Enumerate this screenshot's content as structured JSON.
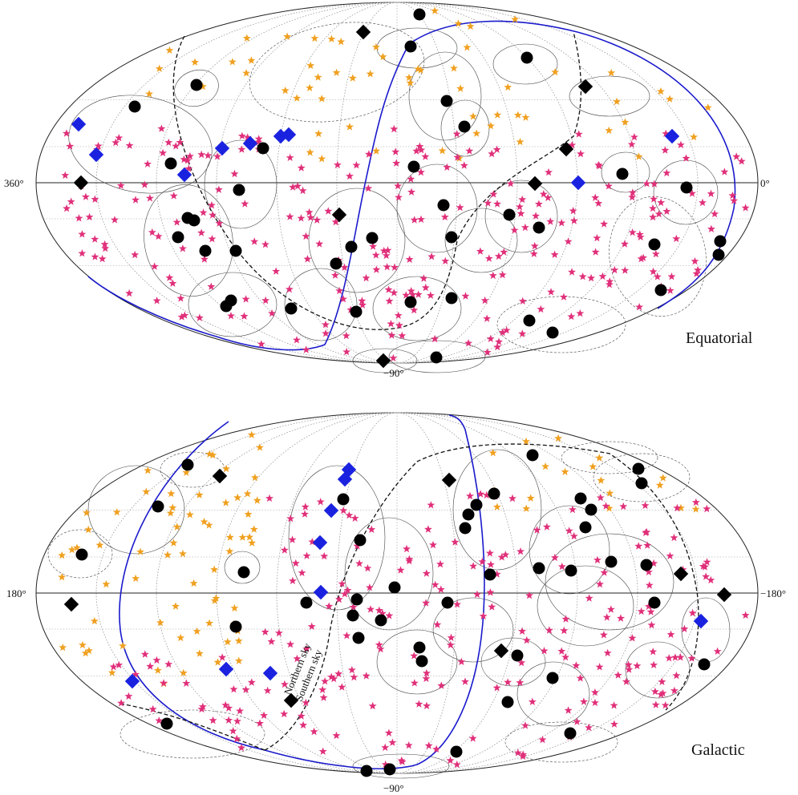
{
  "panels": [
    {
      "label": "Equatorial",
      "left_lon_label": "360°",
      "right_lon_label": "0°",
      "bottom_lat_label": "−90°",
      "center_x": 495,
      "center_y": 228,
      "rx": 450,
      "ry": 225
    },
    {
      "label": "Galactic",
      "left_lon_label": "180°",
      "right_lon_label": "−180°",
      "bottom_lat_label": "−90°",
      "center_x": 495,
      "center_y": 244,
      "rx": 450,
      "ry": 225
    }
  ],
  "annotations": {
    "northern_sky": "Northern sky",
    "southern_sky": "Southern sky"
  },
  "colors": {
    "gold_star": "#f0a020",
    "magenta_star": "#e0307a",
    "black_marker": "#000000",
    "blue_diamond": "#1a22e0"
  }
}
